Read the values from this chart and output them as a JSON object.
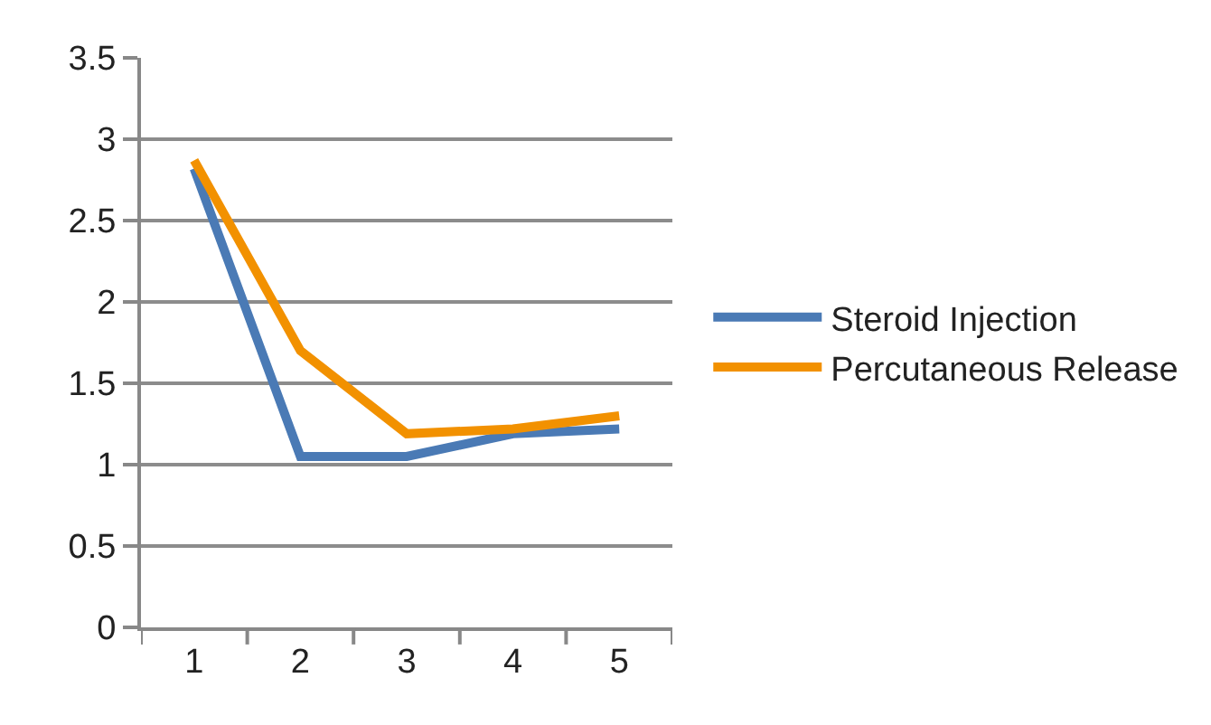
{
  "chart_data": {
    "type": "line",
    "categories": [
      "1",
      "2",
      "3",
      "4",
      "5"
    ],
    "series": [
      {
        "name": "Steroid Injection",
        "color": "#4a7ab5",
        "values": [
          2.82,
          1.05,
          1.05,
          1.19,
          1.22
        ]
      },
      {
        "name": "Percutaneous Release",
        "color": "#f29100",
        "values": [
          2.87,
          1.7,
          1.19,
          1.22,
          1.3
        ]
      }
    ],
    "ylim": [
      0,
      3.5
    ],
    "yticks": [
      0,
      0.5,
      1,
      1.5,
      2,
      2.5,
      3,
      3.5
    ],
    "grid": "y",
    "legend": "right",
    "marker": "none",
    "line_style": "solid"
  }
}
